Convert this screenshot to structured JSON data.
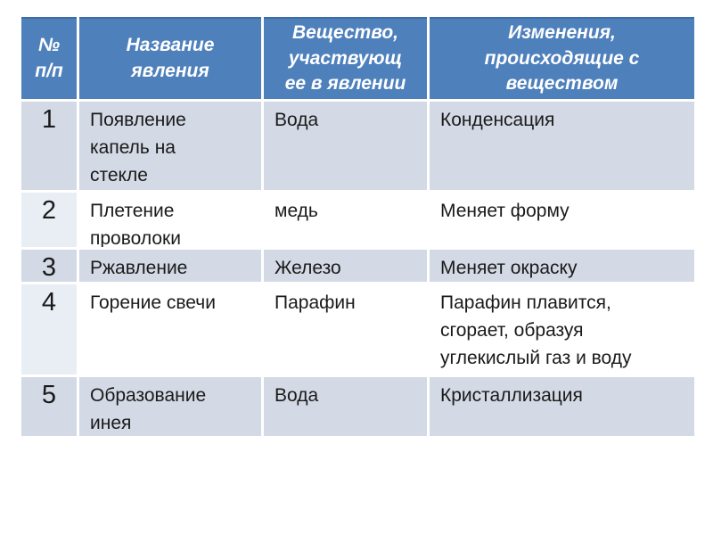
{
  "table": {
    "columns": [
      {
        "label": "№\nп/п"
      },
      {
        "label": "Название\nявления"
      },
      {
        "label": "Вещество,\nучаствующ\nее в явлении"
      },
      {
        "label": "Изменения,\nпроисходящие с\nвеществом"
      }
    ],
    "rows": [
      {
        "num": "1",
        "name": "Появление\nкапель на\nстекле",
        "substance": "Вода",
        "change": "Конденсация"
      },
      {
        "num": "2",
        "name": "Плетение\nпроволоки",
        "substance": "медь",
        "change": "Меняет форму"
      },
      {
        "num": "3",
        "name": "Ржавление",
        "substance": "Железо",
        "change": "Меняет окраску"
      },
      {
        "num": "4",
        "name": "Горение свечи",
        "substance": "Парафин",
        "change": "Парафин плавится,\nсгорает, образуя\nуглекислый газ и воду"
      },
      {
        "num": "5",
        "name": "Образование\nинея",
        "substance": "Вода",
        "change": "Кристаллизация"
      }
    ],
    "colors": {
      "header_bg": "#4e80bc",
      "header_top_border": "#3d6ca6",
      "band_row_bg": "#d3d9e5",
      "white_row_bg": "#ffffff",
      "first_col_tint_bg": "#e9edf4",
      "grid_line": "#ffffff",
      "header_text": "#ffffff",
      "body_text": "#1a1a1a"
    }
  }
}
